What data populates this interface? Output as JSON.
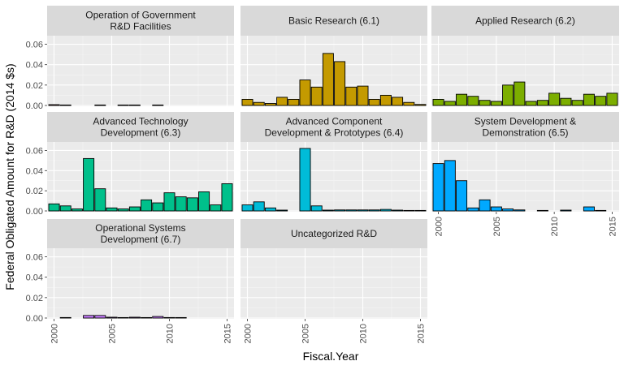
{
  "chart_data": {
    "type": "bar",
    "facet_layout": "3 columns, 3 rows, shared y-axis per row, shared x-axis per column",
    "xlabel": "Fiscal.Year",
    "ylabel": "Federal Obligated Amount for R&D (2014 $s)",
    "x_ticks": [
      "2000",
      "2005",
      "2010",
      "2015"
    ],
    "y_ticks": [
      "0.00",
      "0.02",
      "0.04",
      "0.06"
    ],
    "ylim": [
      0,
      0.066
    ],
    "grid": true,
    "x": [
      2000,
      2001,
      2002,
      2003,
      2004,
      2005,
      2006,
      2007,
      2008,
      2009,
      2010,
      2011,
      2012,
      2013,
      2014,
      2015
    ],
    "panels": [
      {
        "title_lines": [
          "Operation of Government",
          "R&D Facilities"
        ],
        "color": "#F8766D",
        "values": [
          0.0008,
          0.0004,
          0,
          0,
          0.0003,
          0,
          0.0002,
          0.0002,
          0,
          0.0004,
          0,
          0,
          0,
          0,
          0,
          0
        ]
      },
      {
        "title_lines": [
          "Basic Research (6.1)"
        ],
        "color": "#C49A00",
        "values": [
          0.006,
          0.003,
          0.002,
          0.008,
          0.006,
          0.025,
          0.018,
          0.051,
          0.043,
          0.018,
          0.019,
          0.006,
          0.01,
          0.008,
          0.003,
          0.001
        ]
      },
      {
        "title_lines": [
          "Applied Research (6.2)"
        ],
        "color": "#7CAE00",
        "values": [
          0.006,
          0.004,
          0.011,
          0.009,
          0.005,
          0.004,
          0.02,
          0.023,
          0.004,
          0.005,
          0.012,
          0.007,
          0.005,
          0.011,
          0.009,
          0.012
        ]
      },
      {
        "title_lines": [
          "Advanced Technology",
          "Development (6.3)"
        ],
        "color": "#00C08B",
        "values": [
          0.007,
          0.005,
          0.002,
          0.052,
          0.022,
          0.003,
          0.002,
          0.004,
          0.011,
          0.008,
          0.018,
          0.014,
          0.013,
          0.019,
          0.006,
          0.027
        ]
      },
      {
        "title_lines": [
          "Advanced Component",
          "Development & Prototypes (6.4)"
        ],
        "color": "#00BCD8",
        "values": [
          0.006,
          0.009,
          0.003,
          0.0008,
          0,
          0.062,
          0.005,
          0.0008,
          0.001,
          0.001,
          0.001,
          0.001,
          0.0015,
          0.0008,
          0.0004,
          0.0004
        ]
      },
      {
        "title_lines": [
          "System Development &",
          "Demonstration (6.5)"
        ],
        "color": "#00A9FF",
        "values": [
          0.047,
          0.05,
          0.03,
          0.003,
          0.011,
          0.004,
          0.002,
          0.001,
          0,
          0.0005,
          0,
          0.0008,
          0,
          0.004,
          0.0005,
          0
        ]
      },
      {
        "title_lines": [
          "Operational Systems",
          "Development (6.7)"
        ],
        "color": "#C77CFF",
        "values": [
          0,
          0.0005,
          0,
          0.0025,
          0.0025,
          0.0008,
          0.0004,
          0.0008,
          0.0004,
          0.0015,
          0.0005,
          0.0004,
          0,
          0,
          0,
          0
        ]
      },
      {
        "title_lines": [
          "Uncategorized R&D"
        ],
        "color": "#F564E3",
        "values": [
          0,
          0,
          0,
          0,
          0,
          0,
          0,
          0,
          0,
          0,
          0,
          0,
          0,
          0,
          0,
          0
        ]
      }
    ]
  }
}
